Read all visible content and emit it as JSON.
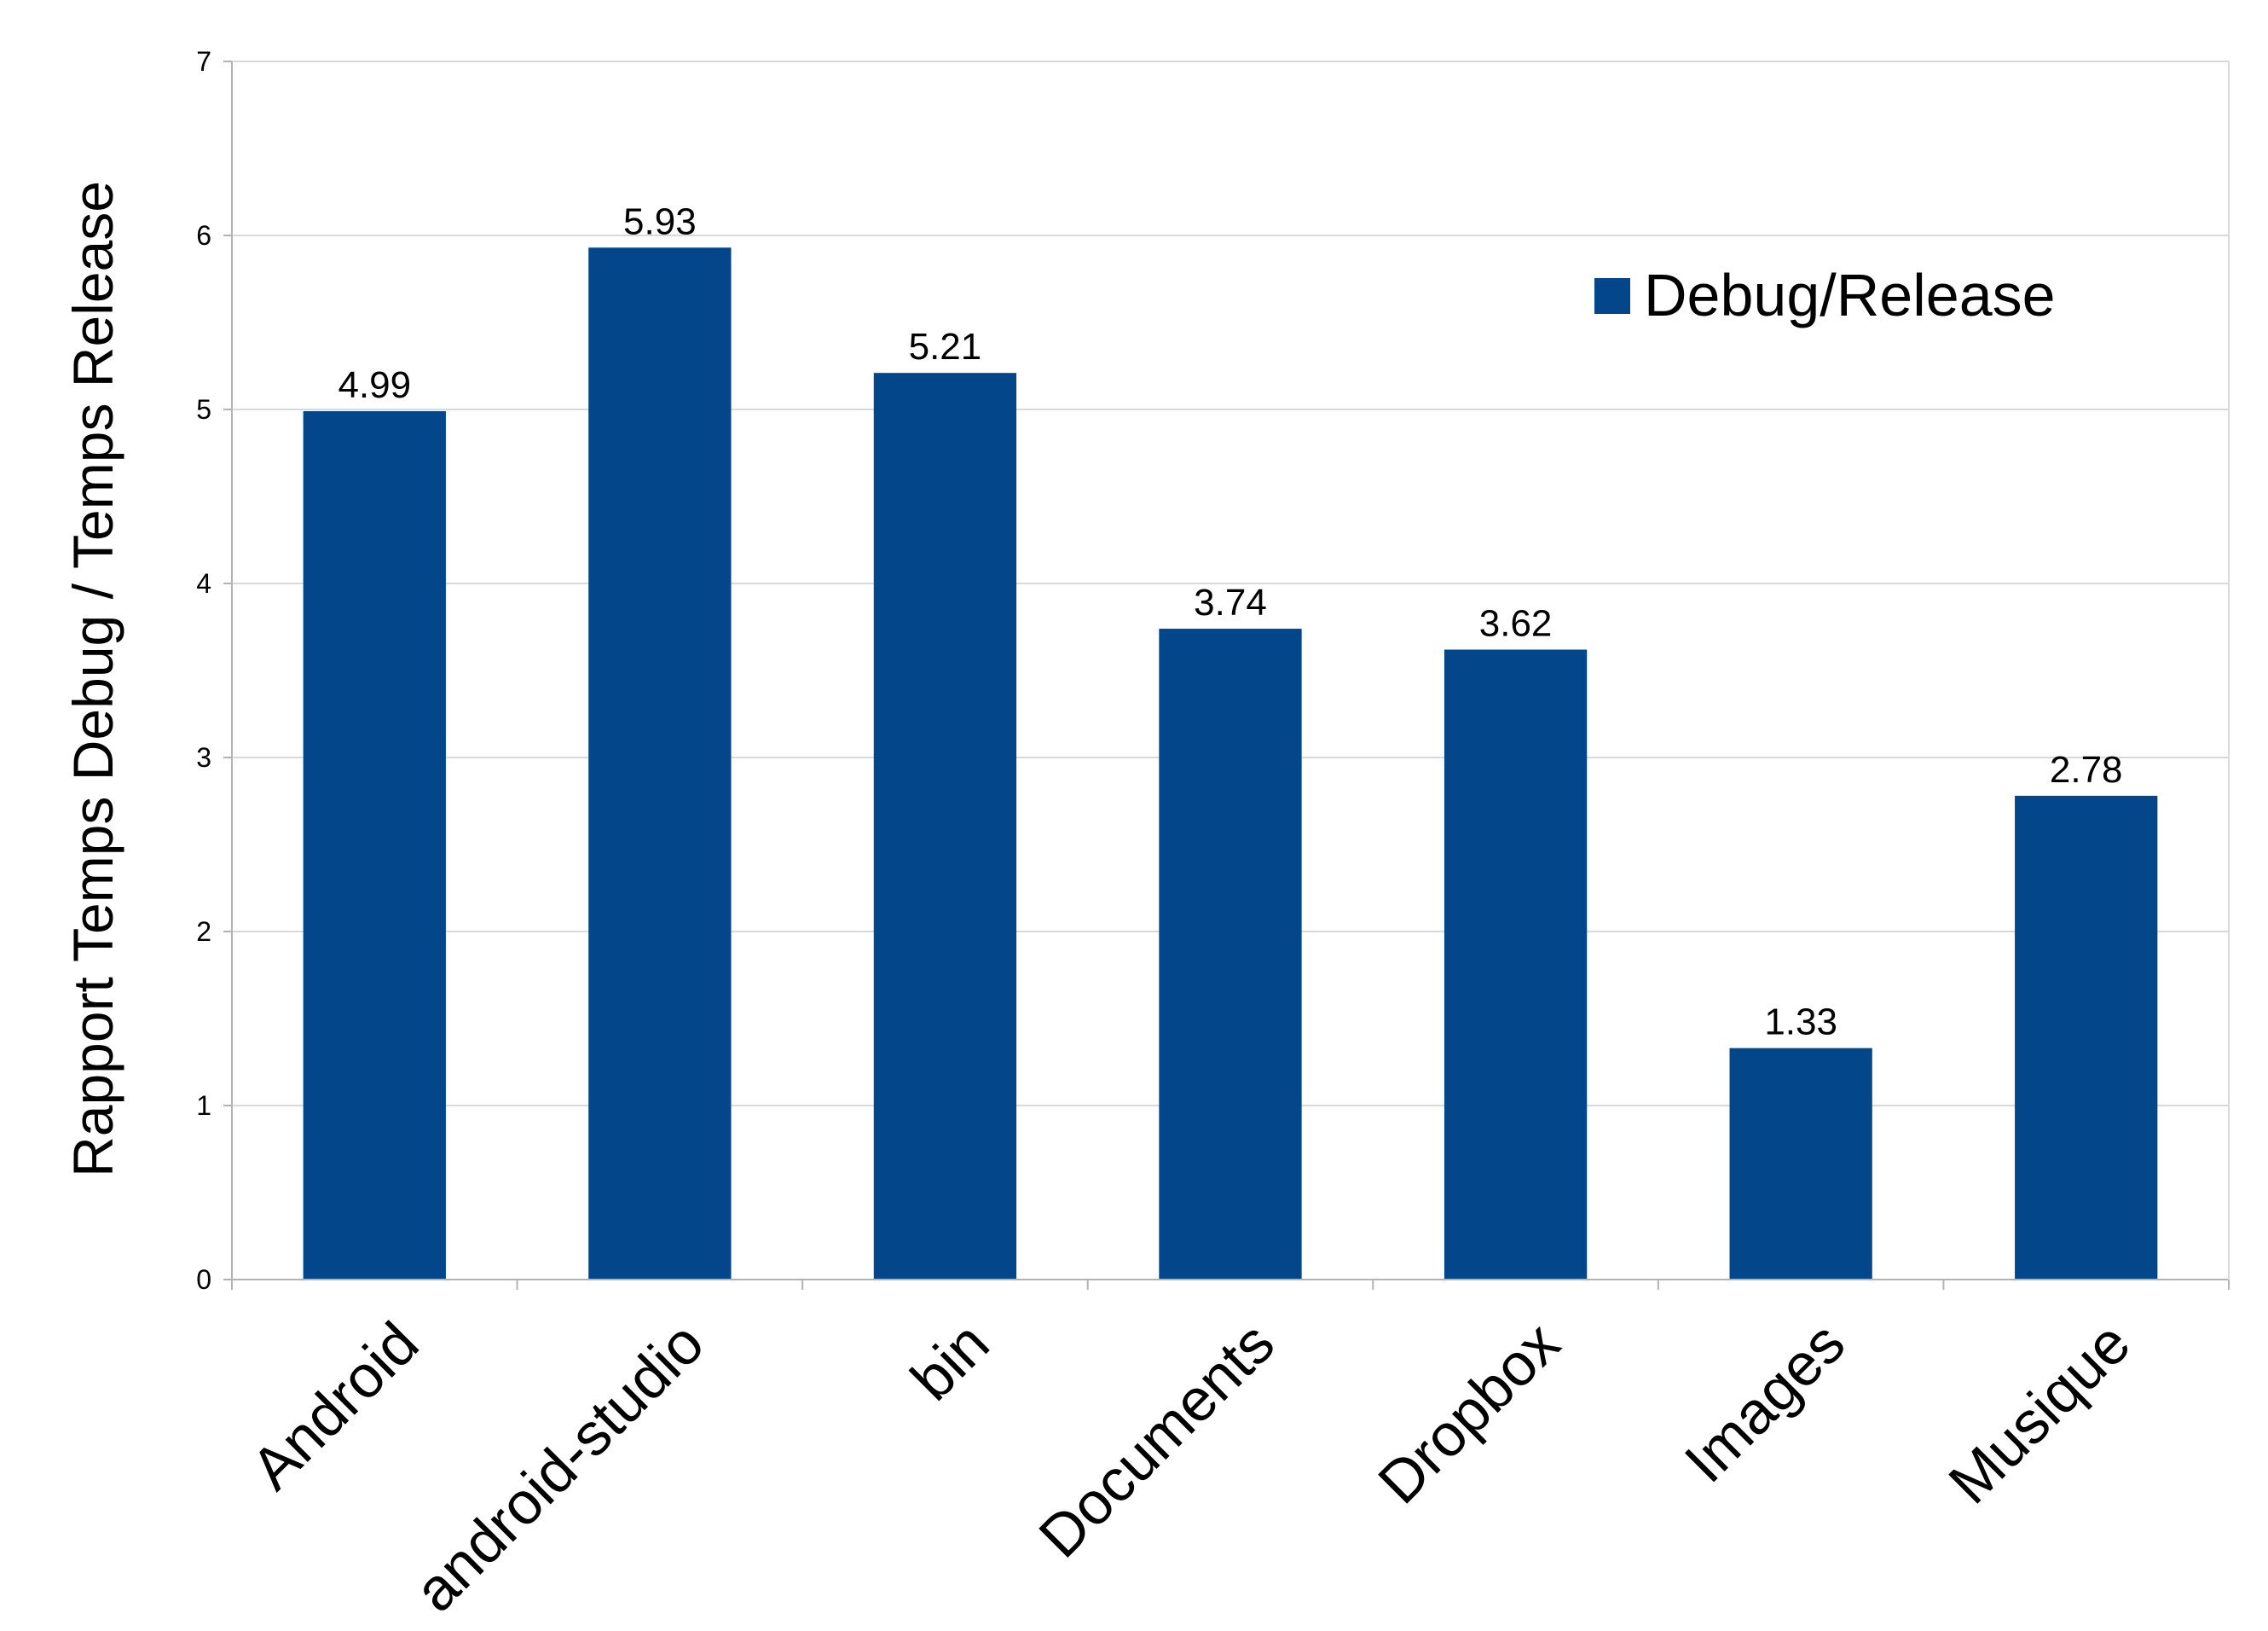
{
  "chart_data": {
    "type": "bar",
    "categories": [
      "Android",
      "android-studio",
      "bin",
      "Documents",
      "Dropbox",
      "Images",
      "Musique"
    ],
    "series": [
      {
        "name": "Debug/Release",
        "values": [
          4.99,
          5.93,
          5.21,
          3.74,
          3.62,
          1.33,
          2.78
        ],
        "color": "#03468a"
      }
    ],
    "data_labels": [
      "4.99",
      "5.93",
      "5.21",
      "3.74",
      "3.62",
      "1.33",
      "2.78"
    ],
    "ylabel": "Rapport Temps Debug / Temps Release",
    "xlabel": "",
    "ylim": [
      0,
      7
    ],
    "yticks": [
      "0",
      "1",
      "2",
      "3",
      "4",
      "5",
      "6",
      "7"
    ],
    "grid": true,
    "legend": "top-right",
    "gridColor": "#d9d9d9",
    "axisColor": "#b3b3b3"
  }
}
